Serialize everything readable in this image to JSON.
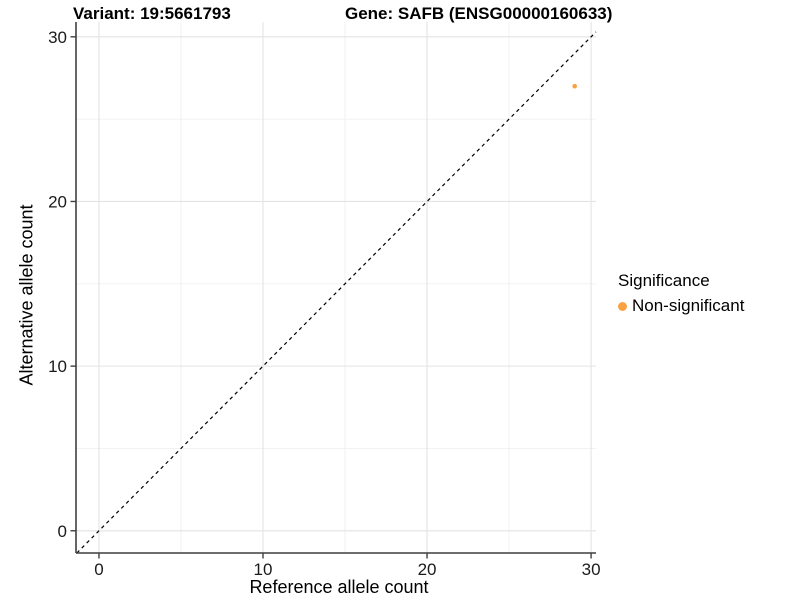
{
  "titles": {
    "variant": "Variant: 19:5661793",
    "gene": "Gene: SAFB (ENSG00000160633)"
  },
  "chart_data": {
    "type": "scatter",
    "xlabel": "Reference allele count",
    "ylabel": "Alternative allele count",
    "xlim": [
      -1.4,
      30.3
    ],
    "ylim": [
      -1.35,
      30.9
    ],
    "x_ticks": [
      0,
      10,
      20,
      30
    ],
    "y_ticks": [
      0,
      10,
      20,
      30
    ],
    "x_minor_gridlines": [
      5,
      15,
      25
    ],
    "y_minor_gridlines": [
      5,
      15,
      25
    ],
    "grid": true,
    "points": [
      {
        "x": 29,
        "y": 27,
        "series": "Non-significant"
      }
    ],
    "reference_line": {
      "kind": "identity y=x",
      "style": "dashed",
      "color": "#000000"
    },
    "legend": {
      "title": "Significance",
      "position": "right",
      "items": [
        {
          "label": "Non-significant",
          "color": "#F9A242"
        }
      ]
    },
    "colors": {
      "point": "#F9A242",
      "grid_major": "#E3E3E3",
      "grid_minor": "#F0F0F0",
      "axis_line": "#3F3F3F",
      "tick_text": "#1A1A1A"
    }
  }
}
